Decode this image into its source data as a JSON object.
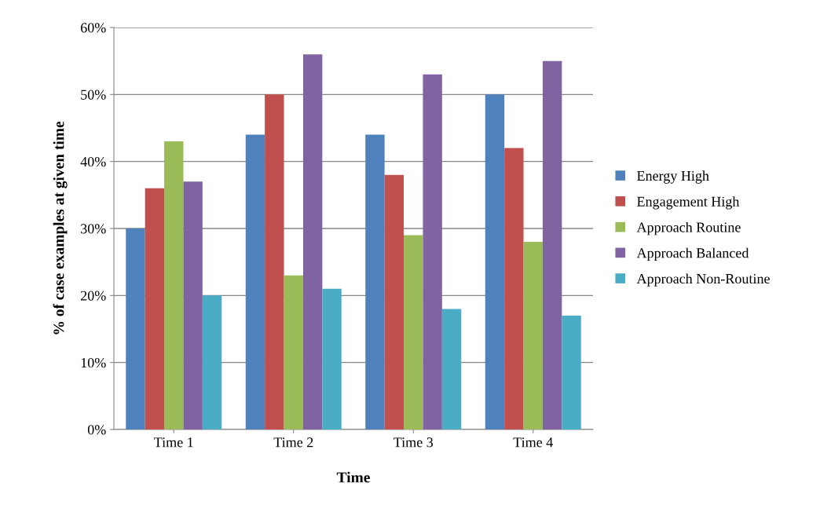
{
  "chart_data": {
    "type": "bar",
    "xlabel": "Time",
    "ylabel": "% of case examples at given time",
    "categories": [
      "Time 1",
      "Time 2",
      "Time 3",
      "Time 4"
    ],
    "series": [
      {
        "name": "Energy High",
        "color": "#4f81bd",
        "values": [
          30,
          44,
          44,
          50
        ]
      },
      {
        "name": "Engagement High",
        "color": "#c0504d",
        "values": [
          36,
          50,
          38,
          42
        ]
      },
      {
        "name": "Approach Routine",
        "color": "#9bbb59",
        "values": [
          43,
          23,
          29,
          28
        ]
      },
      {
        "name": "Approach Balanced",
        "color": "#8064a2",
        "values": [
          37,
          56,
          53,
          55
        ]
      },
      {
        "name": "Approach Non-Routine",
        "color": "#4bacc6",
        "values": [
          20,
          21,
          18,
          17
        ]
      }
    ],
    "ylim": [
      0,
      60
    ],
    "yticks": [
      {
        "value": 0,
        "label": "0%"
      },
      {
        "value": 10,
        "label": "10%"
      },
      {
        "value": 20,
        "label": "20%"
      },
      {
        "value": 30,
        "label": "30%"
      },
      {
        "value": 40,
        "label": "40%"
      },
      {
        "value": 50,
        "label": "50%"
      },
      {
        "value": 60,
        "label": "60%"
      }
    ],
    "grid": "y",
    "legend": "right"
  }
}
